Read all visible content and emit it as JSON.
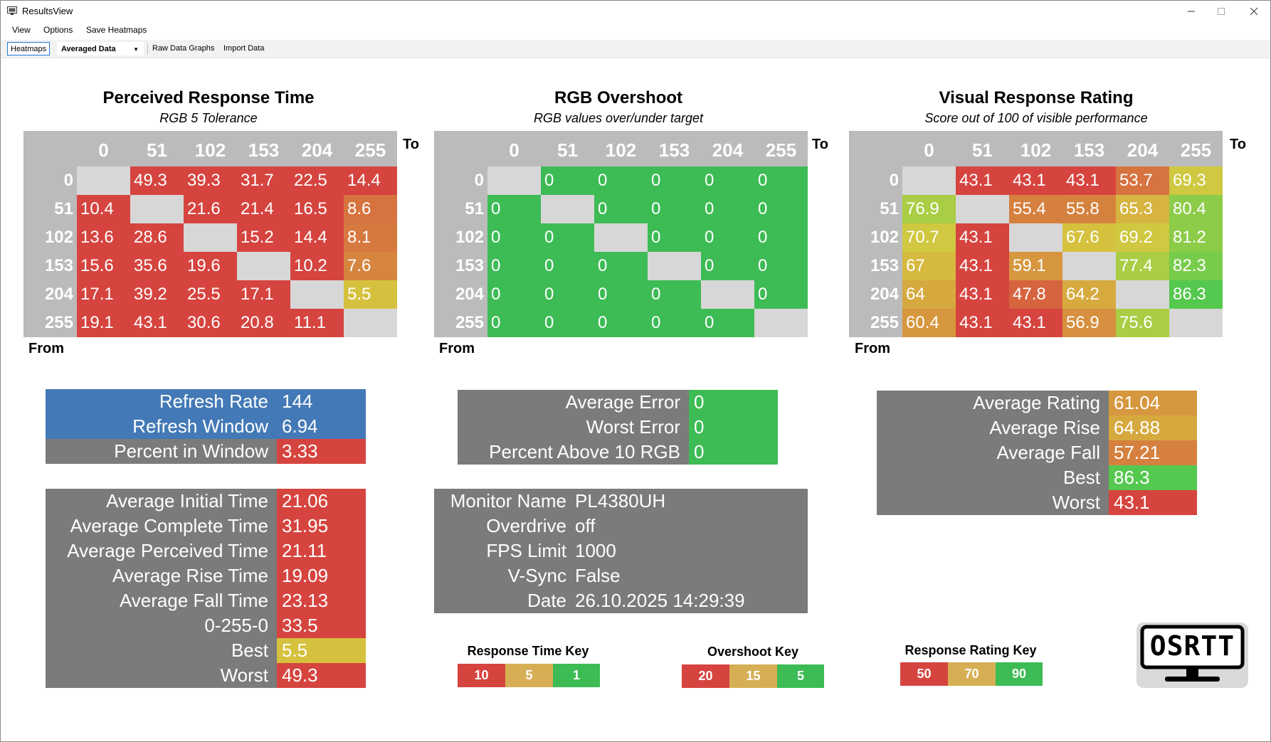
{
  "window": {
    "title": "ResultsView",
    "buttons": [
      "minimize",
      "maximize",
      "close"
    ]
  },
  "menu": {
    "items": [
      "View",
      "Options",
      "Save Heatmaps"
    ]
  },
  "toolbar": {
    "heatmaps": "Heatmaps",
    "averaged": "Averaged Data",
    "raw": "Raw Data Graphs",
    "import": "Import Data"
  },
  "labels": {
    "to": "To",
    "from": "From"
  },
  "heatmaps": [
    {
      "title": "Perceived Response Time",
      "subtitle": "RGB 5 Tolerance",
      "headers": [
        "0",
        "51",
        "102",
        "153",
        "204",
        "255"
      ],
      "rows": [
        [
          "",
          "49.3",
          "39.3",
          "31.7",
          "22.5",
          "14.4"
        ],
        [
          "10.4",
          "",
          "21.6",
          "21.4",
          "16.5",
          "8.6"
        ],
        [
          "13.6",
          "28.6",
          "",
          "15.2",
          "14.4",
          "8.1"
        ],
        [
          "15.6",
          "35.6",
          "19.6",
          "",
          "10.2",
          "7.6"
        ],
        [
          "17.1",
          "39.2",
          "25.5",
          "17.1",
          "",
          "5.5"
        ],
        [
          "19.1",
          "43.1",
          "30.6",
          "20.8",
          "11.1",
          ""
        ]
      ],
      "colors": [
        [
          "",
          "#d6443f",
          "#d6443f",
          "#d6443f",
          "#d6443f",
          "#d6443f"
        ],
        [
          "#d6443f",
          "",
          "#d6443f",
          "#d6443f",
          "#d6443f",
          "#d6733f"
        ],
        [
          "#d6443f",
          "#d6443f",
          "",
          "#d6443f",
          "#d6443f",
          "#d6793f"
        ],
        [
          "#d6443f",
          "#d6443f",
          "#d6443f",
          "",
          "#d6443f",
          "#d6853f"
        ],
        [
          "#d6443f",
          "#d6443f",
          "#d6443f",
          "#d6443f",
          "",
          "#d6c13f"
        ],
        [
          "#d6443f",
          "#d6443f",
          "#d6443f",
          "#d6443f",
          "#d6443f",
          ""
        ]
      ]
    },
    {
      "title": "RGB Overshoot",
      "subtitle": "RGB values over/under target",
      "headers": [
        "0",
        "51",
        "102",
        "153",
        "204",
        "255"
      ],
      "rows": [
        [
          "",
          "0",
          "0",
          "0",
          "0",
          "0"
        ],
        [
          "0",
          "",
          "0",
          "0",
          "0",
          "0"
        ],
        [
          "0",
          "0",
          "",
          "0",
          "0",
          "0"
        ],
        [
          "0",
          "0",
          "0",
          "",
          "0",
          "0"
        ],
        [
          "0",
          "0",
          "0",
          "0",
          "",
          "0"
        ],
        [
          "0",
          "0",
          "0",
          "0",
          "0",
          ""
        ]
      ],
      "colors": [
        [
          "",
          "#3dbb55",
          "#3dbb55",
          "#3dbb55",
          "#3dbb55",
          "#3dbb55"
        ],
        [
          "#3dbb55",
          "",
          "#3dbb55",
          "#3dbb55",
          "#3dbb55",
          "#3dbb55"
        ],
        [
          "#3dbb55",
          "#3dbb55",
          "",
          "#3dbb55",
          "#3dbb55",
          "#3dbb55"
        ],
        [
          "#3dbb55",
          "#3dbb55",
          "#3dbb55",
          "",
          "#3dbb55",
          "#3dbb55"
        ],
        [
          "#3dbb55",
          "#3dbb55",
          "#3dbb55",
          "#3dbb55",
          "",
          "#3dbb55"
        ],
        [
          "#3dbb55",
          "#3dbb55",
          "#3dbb55",
          "#3dbb55",
          "#3dbb55",
          ""
        ]
      ]
    },
    {
      "title": "Visual Response Rating",
      "subtitle": "Score out of 100 of visible performance",
      "headers": [
        "0",
        "51",
        "102",
        "153",
        "204",
        "255"
      ],
      "rows": [
        [
          "",
          "43.1",
          "43.1",
          "43.1",
          "53.7",
          "69.3"
        ],
        [
          "76.9",
          "",
          "55.4",
          "55.8",
          "65.3",
          "80.4"
        ],
        [
          "70.7",
          "43.1",
          "",
          "67.6",
          "69.2",
          "81.2"
        ],
        [
          "67",
          "43.1",
          "59.1",
          "",
          "77.4",
          "82.3"
        ],
        [
          "64",
          "43.1",
          "47.8",
          "64.2",
          "",
          "86.3"
        ],
        [
          "60.4",
          "43.1",
          "43.1",
          "56.9",
          "75.6",
          ""
        ]
      ],
      "colors": [
        [
          "",
          "#d6443f",
          "#d6443f",
          "#d6443f",
          "#d6733f",
          "#cfc840"
        ],
        [
          "#a9cd44",
          "",
          "#d6803f",
          "#d6823f",
          "#d6b43f",
          "#8ccc48"
        ],
        [
          "#cfc840",
          "#d6443f",
          "",
          "#d6c13f",
          "#cfc840",
          "#8ccc48"
        ],
        [
          "#d6b93f",
          "#d6443f",
          "#d6973f",
          "",
          "#a9cd44",
          "#78cc4b"
        ],
        [
          "#d6a93f",
          "#d6443f",
          "#d6643f",
          "#d6aa3f",
          "",
          "#55c84f"
        ],
        [
          "#d6973f",
          "#d6443f",
          "#d6443f",
          "#d6903f",
          "#a9cd44",
          ""
        ]
      ]
    }
  ],
  "refresh_panel": [
    {
      "label": "Refresh Rate",
      "value": "144",
      "label_bg": "#4379b6",
      "value_bg": "#4379b6"
    },
    {
      "label": "Refresh Window",
      "value": "6.94",
      "label_bg": "#4379b6",
      "value_bg": "#4379b6"
    },
    {
      "label": "Percent in Window",
      "value": "3.33",
      "label_bg": "#7b7b7b",
      "value_bg": "#d6443f"
    }
  ],
  "error_panel": [
    {
      "label": "Average Error",
      "value": "0",
      "value_bg": "#3dbb55"
    },
    {
      "label": "Worst Error",
      "value": "0",
      "value_bg": "#3dbb55"
    },
    {
      "label": "Percent Above 10 RGB",
      "value": "0",
      "value_bg": "#3dbb55"
    }
  ],
  "rating_panel": [
    {
      "label": "Average Rating",
      "value": "61.04",
      "value_bg": "#d6973f"
    },
    {
      "label": "Average Rise",
      "value": "64.88",
      "value_bg": "#d6a93f"
    },
    {
      "label": "Average Fall",
      "value": "57.21",
      "value_bg": "#d6803f"
    },
    {
      "label": "Best",
      "value": "86.3",
      "value_bg": "#55c84f"
    },
    {
      "label": "Worst",
      "value": "43.1",
      "value_bg": "#d6443f"
    }
  ],
  "time_panel": [
    {
      "label": "Average Initial Time",
      "value": "21.06",
      "value_bg": "#d6443f"
    },
    {
      "label": "Average Complete Time",
      "value": "31.95",
      "value_bg": "#d6443f"
    },
    {
      "label": "Average Perceived Time",
      "value": "21.11",
      "value_bg": "#d6443f"
    },
    {
      "label": "Average Rise Time",
      "value": "19.09",
      "value_bg": "#d6443f"
    },
    {
      "label": "Average Fall Time",
      "value": "23.13",
      "value_bg": "#d6443f"
    },
    {
      "label": "0-255-0",
      "value": "33.5",
      "value_bg": "#d6443f"
    },
    {
      "label": "Best",
      "value": "5.5",
      "value_bg": "#d6c13f"
    },
    {
      "label": "Worst",
      "value": "49.3",
      "value_bg": "#d6443f"
    }
  ],
  "monitor_panel": [
    {
      "label": "Monitor Name",
      "value": "PL4380UH"
    },
    {
      "label": "Overdrive",
      "value": "off"
    },
    {
      "label": "FPS Limit",
      "value": "1000"
    },
    {
      "label": "V-Sync",
      "value": "False"
    },
    {
      "label": "Date",
      "value": "26.10.2025 14:29:39"
    }
  ],
  "keys": [
    {
      "title": "Response Time Key",
      "values": [
        "10",
        "5",
        "1"
      ],
      "colors": [
        "#d6443f",
        "#d6af55",
        "#3dbb55"
      ]
    },
    {
      "title": "Overshoot Key",
      "values": [
        "20",
        "15",
        "5"
      ],
      "colors": [
        "#d6443f",
        "#d6af55",
        "#3dbb55"
      ]
    },
    {
      "title": "Response Rating Key",
      "values": [
        "50",
        "70",
        "90"
      ],
      "colors": [
        "#d6443f",
        "#d6af55",
        "#3dbb55"
      ]
    }
  ],
  "logo": {
    "text": "OSRTT"
  },
  "colors": {
    "grid_bg": "#bbbbbb",
    "panel_gray": "#7b7b7b",
    "diag": "#d7d7d7"
  }
}
